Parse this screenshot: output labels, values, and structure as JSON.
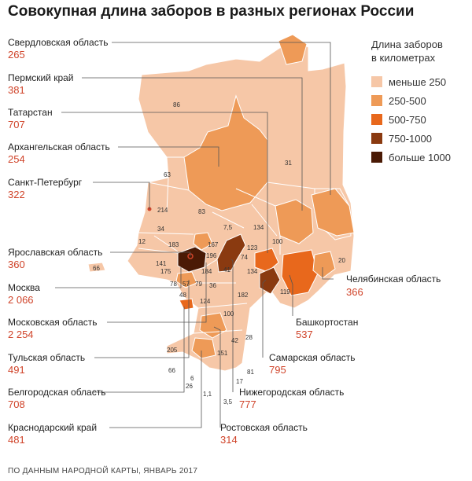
{
  "title": "Совокупная длина заборов в разных регионах России",
  "legend": {
    "title_line1": "Длина заборов",
    "title_line2": "в километрах",
    "items": [
      {
        "label": "меньше 250",
        "color": "#f6c7a7"
      },
      {
        "label": "250-500",
        "color": "#ee9a57"
      },
      {
        "label": "500-750",
        "color": "#e8681c"
      },
      {
        "label": "750-1000",
        "color": "#8a3a10"
      },
      {
        "label": "больше 1000",
        "color": "#4a1a05"
      }
    ]
  },
  "callouts": [
    {
      "name": "Свердловская область",
      "value": "265"
    },
    {
      "name": "Пермский край",
      "value": "381"
    },
    {
      "name": "Татарстан",
      "value": "707"
    },
    {
      "name": "Архангельская область",
      "value": "254"
    },
    {
      "name": "Санкт-Петербург",
      "value": "322"
    },
    {
      "name": "Ярославская область",
      "value": "360"
    },
    {
      "name": "Москва",
      "value": "2 066"
    },
    {
      "name": "Московская область",
      "value": "2 254"
    },
    {
      "name": "Тульская область",
      "value": "491"
    },
    {
      "name": "Белгородская область",
      "value": "708"
    },
    {
      "name": "Краснодарский край",
      "value": "481"
    },
    {
      "name": "Челябинская область",
      "value": "366"
    },
    {
      "name": "Башкортостан",
      "value": "537"
    },
    {
      "name": "Самарская область",
      "value": "795"
    },
    {
      "name": "Нижегородская область",
      "value": "777"
    },
    {
      "name": "Ростовская область",
      "value": "314"
    }
  ],
  "map_numbers": [
    "86",
    "31",
    "63",
    "214",
    "83",
    "34",
    "7,5",
    "12",
    "183",
    "167",
    "123",
    "100",
    "134",
    "20",
    "66",
    "141",
    "196",
    "74",
    "175",
    "184",
    "41",
    "134",
    "78",
    "57",
    "79",
    "36",
    "182",
    "119",
    "48",
    "124",
    "100",
    "28",
    "42",
    "151",
    "205",
    "81",
    "66",
    "6",
    "17",
    "26",
    "1,1",
    "3,5"
  ],
  "source": "ПО ДАННЫМ НАРОДНОЙ КАРТЫ, ЯНВАРЬ 2017"
}
